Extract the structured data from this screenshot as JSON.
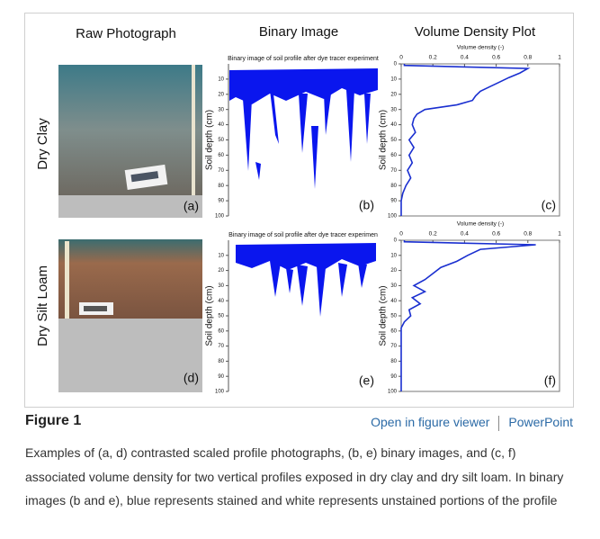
{
  "figure": {
    "column_titles": [
      "Raw Photograph",
      "Binary Image",
      "Volume Density Plot"
    ],
    "row_labels": [
      "Dry Clay",
      "Dry Silt Loam"
    ],
    "photo_labels": [
      "(a)",
      "(d)"
    ],
    "depth_label": "Soil depth (cm)",
    "density_label": "Volume density (-)",
    "binary_images": [
      {
        "title": "Binary image of soil profile after dye tracer experiment",
        "panel": "(b)",
        "ylim": [
          0,
          100
        ],
        "yticks": [
          10,
          20,
          30,
          40,
          50,
          60,
          70,
          80,
          90,
          100
        ]
      },
      {
        "title": "Binary image of soil profile after dye tracer experimen",
        "panel": "(e)",
        "ylim": [
          0,
          100
        ],
        "yticks": [
          10,
          20,
          30,
          40,
          50,
          60,
          70,
          80,
          90,
          100
        ]
      }
    ],
    "density_plots": [
      {
        "panel": "(c)",
        "xlim": [
          0,
          1
        ],
        "xticks": [
          0,
          0.2,
          0.4,
          0.6,
          0.8,
          1
        ],
        "ylim": [
          0,
          100
        ],
        "yticks": [
          0,
          10,
          20,
          30,
          40,
          50,
          60,
          70,
          80,
          90,
          100
        ],
        "depth": [
          0,
          1,
          3,
          6,
          9,
          12,
          15,
          18,
          21,
          24,
          27,
          30,
          33,
          36,
          40,
          45,
          50,
          55,
          60,
          65,
          70,
          75,
          80,
          85,
          90,
          100
        ],
        "density": [
          0.02,
          0.02,
          0.8,
          0.75,
          0.68,
          0.62,
          0.56,
          0.5,
          0.47,
          0.45,
          0.35,
          0.15,
          0.1,
          0.08,
          0.07,
          0.09,
          0.05,
          0.08,
          0.05,
          0.07,
          0.04,
          0.06,
          0.03,
          0.01,
          0,
          0
        ]
      },
      {
        "panel": "(f)",
        "xlim": [
          0,
          1
        ],
        "xticks": [
          0,
          0.2,
          0.4,
          0.6,
          0.8,
          1
        ],
        "ylim": [
          0,
          100
        ],
        "yticks": [
          0,
          10,
          20,
          30,
          40,
          50,
          60,
          70,
          80,
          90,
          100
        ],
        "depth": [
          0,
          1,
          3,
          6,
          10,
          14,
          18,
          22,
          26,
          30,
          34,
          38,
          42,
          46,
          50,
          54,
          58,
          100
        ],
        "density": [
          0.02,
          0.02,
          0.85,
          0.5,
          0.42,
          0.35,
          0.25,
          0.2,
          0.15,
          0.08,
          0.15,
          0.07,
          0.12,
          0.05,
          0.06,
          0.02,
          0,
          0
        ]
      }
    ]
  },
  "caption": {
    "label": "Figure 1",
    "links": [
      "Open in figure viewer",
      "PowerPoint"
    ],
    "text": "Examples of (a, d) contrasted scaled profile photographs, (b, e) binary images, and (c, f) associated volume density for two vertical profiles exposed in dry clay and dry silt loam. In binary images (b and e), blue represents stained and white represents unstained portions of the profile"
  }
}
